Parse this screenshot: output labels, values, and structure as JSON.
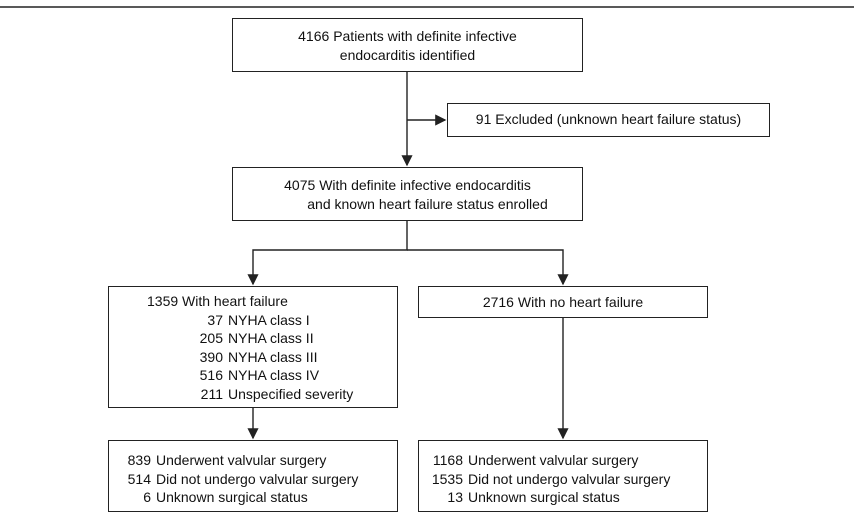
{
  "nodes": [
    {
      "count": 4166,
      "text": [
        "Patients with definite infective",
        "endocarditis identified"
      ]
    },
    {
      "count": 91,
      "text": [
        "Excluded (unknown heart failure status)"
      ]
    },
    {
      "count": 4075,
      "text": [
        "With definite infective endocarditis",
        "and known heart failure status enrolled"
      ]
    },
    {
      "count": 1359,
      "text": [
        "With heart failure"
      ],
      "items": [
        {
          "count": 37,
          "label": "NYHA class I"
        },
        {
          "count": 205,
          "label": "NYHA class II"
        },
        {
          "count": 390,
          "label": "NYHA class III"
        },
        {
          "count": 516,
          "label": "NYHA class IV"
        },
        {
          "count": 211,
          "label": "Unspecified severity"
        }
      ]
    },
    {
      "count": 2716,
      "text": [
        "With no heart failure"
      ]
    },
    {
      "items": [
        {
          "count": 839,
          "label": "Underwent valvular surgery"
        },
        {
          "count": 514,
          "label": "Did not undergo valvular surgery"
        },
        {
          "count": 6,
          "label": "Unknown surgical status"
        }
      ]
    },
    {
      "items": [
        {
          "count": 1168,
          "label": "Underwent valvular surgery"
        },
        {
          "count": 1535,
          "label": "Did not undergo valvular surgery"
        },
        {
          "count": 13,
          "label": "Unknown surgical status"
        }
      ]
    }
  ]
}
